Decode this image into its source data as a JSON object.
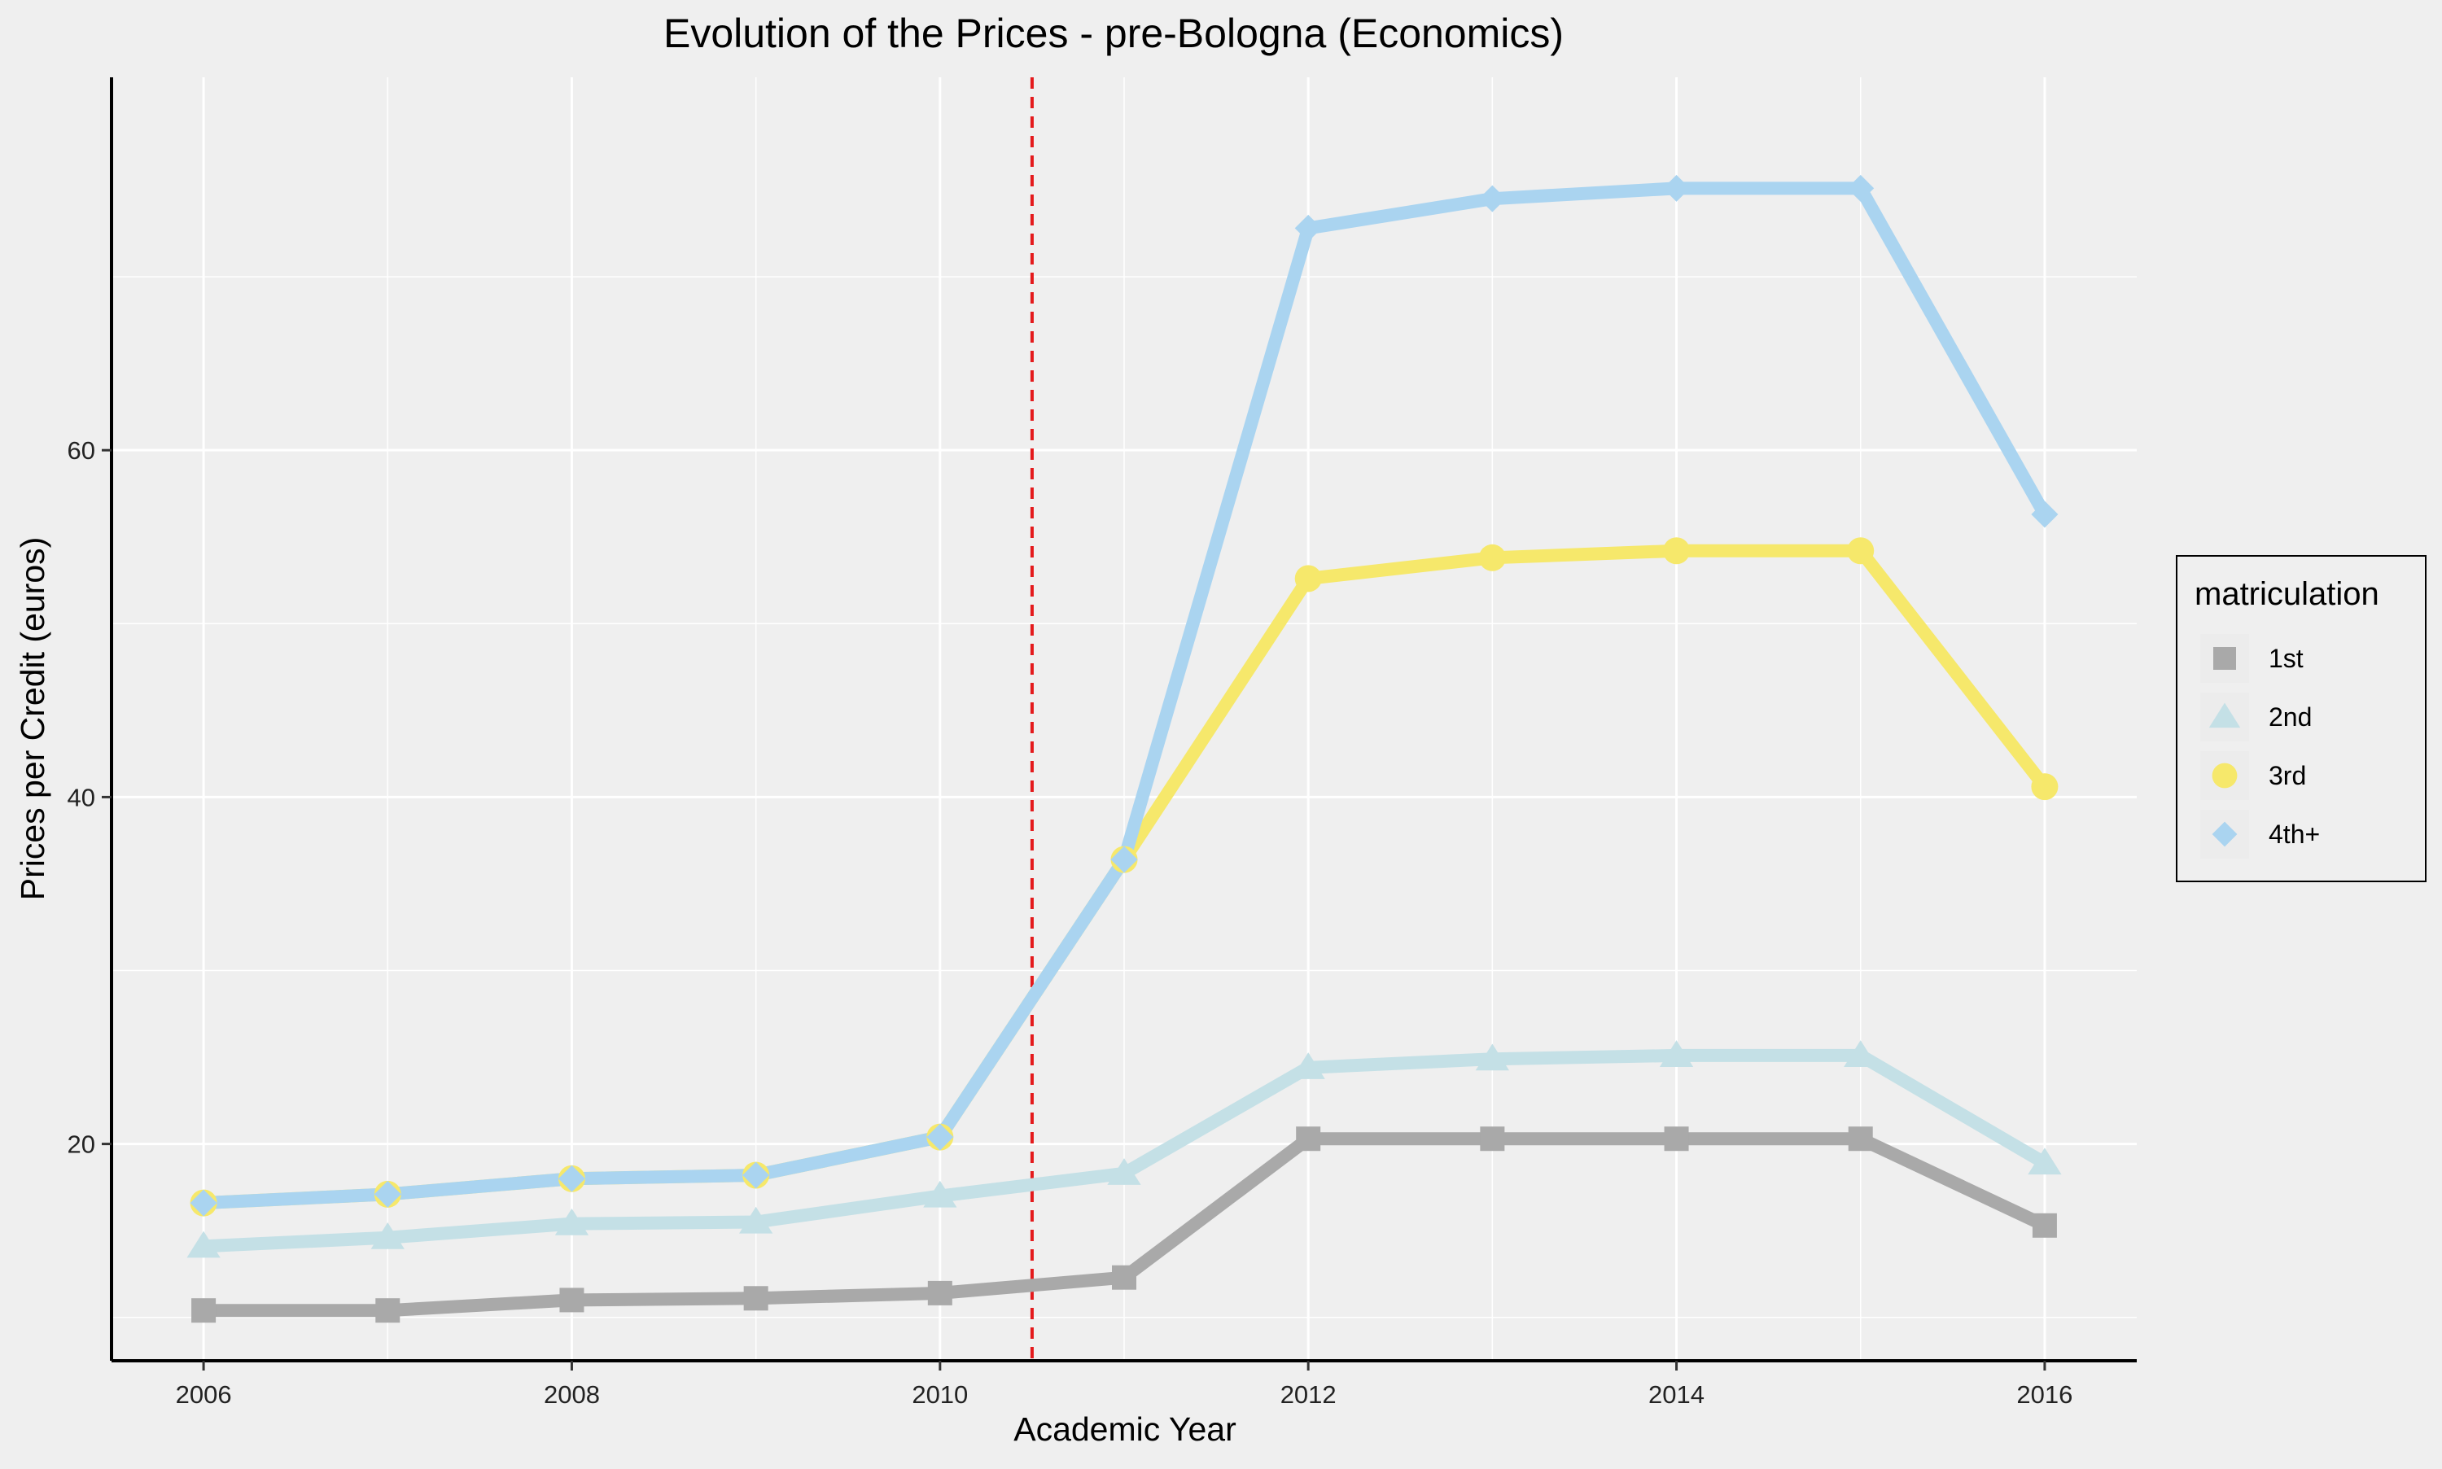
{
  "chart_data": {
    "type": "line",
    "title": "Evolution of the Prices - pre-Bologna (Economics)",
    "xlabel": "Academic Year",
    "ylabel": "Prices per Credit (euros)",
    "x": [
      2006,
      2007,
      2008,
      2009,
      2010,
      2011,
      2012,
      2013,
      2014,
      2015,
      2016
    ],
    "xlim": [
      2005.5,
      2016.5
    ],
    "ylim": [
      7.5,
      81.5
    ],
    "x_ticks": [
      2006,
      2008,
      2010,
      2012,
      2014,
      2016
    ],
    "y_ticks": [
      20,
      40,
      60
    ],
    "y_minor_gridlines": [
      10,
      30,
      50,
      70
    ],
    "grid": true,
    "vertical_reference_line": {
      "x": 2010.5,
      "color": "#e41a1c",
      "style": "dashed"
    },
    "legend": {
      "title": "matriculation",
      "position": "right"
    },
    "series": [
      {
        "name": "1st",
        "marker": "square",
        "color": "#a9a9a9",
        "values": [
          10.4,
          10.4,
          11.0,
          11.1,
          11.4,
          12.3,
          20.3,
          20.3,
          20.3,
          20.3,
          15.3
        ]
      },
      {
        "name": "2nd",
        "marker": "triangle",
        "color": "#c4e0e6",
        "values": [
          14.1,
          14.6,
          15.4,
          15.5,
          17.0,
          18.3,
          24.4,
          24.9,
          25.1,
          25.1,
          18.9
        ]
      },
      {
        "name": "3rd",
        "marker": "circle",
        "color": "#f6e86b",
        "values": [
          16.6,
          17.1,
          18.0,
          18.2,
          20.4,
          36.4,
          52.6,
          53.8,
          54.2,
          54.2,
          40.6
        ]
      },
      {
        "name": "4th+",
        "marker": "diamond",
        "color": "#aad4f0",
        "values": [
          16.6,
          17.1,
          18.0,
          18.2,
          20.4,
          36.4,
          72.8,
          74.5,
          75.1,
          75.1,
          56.3
        ]
      }
    ]
  }
}
